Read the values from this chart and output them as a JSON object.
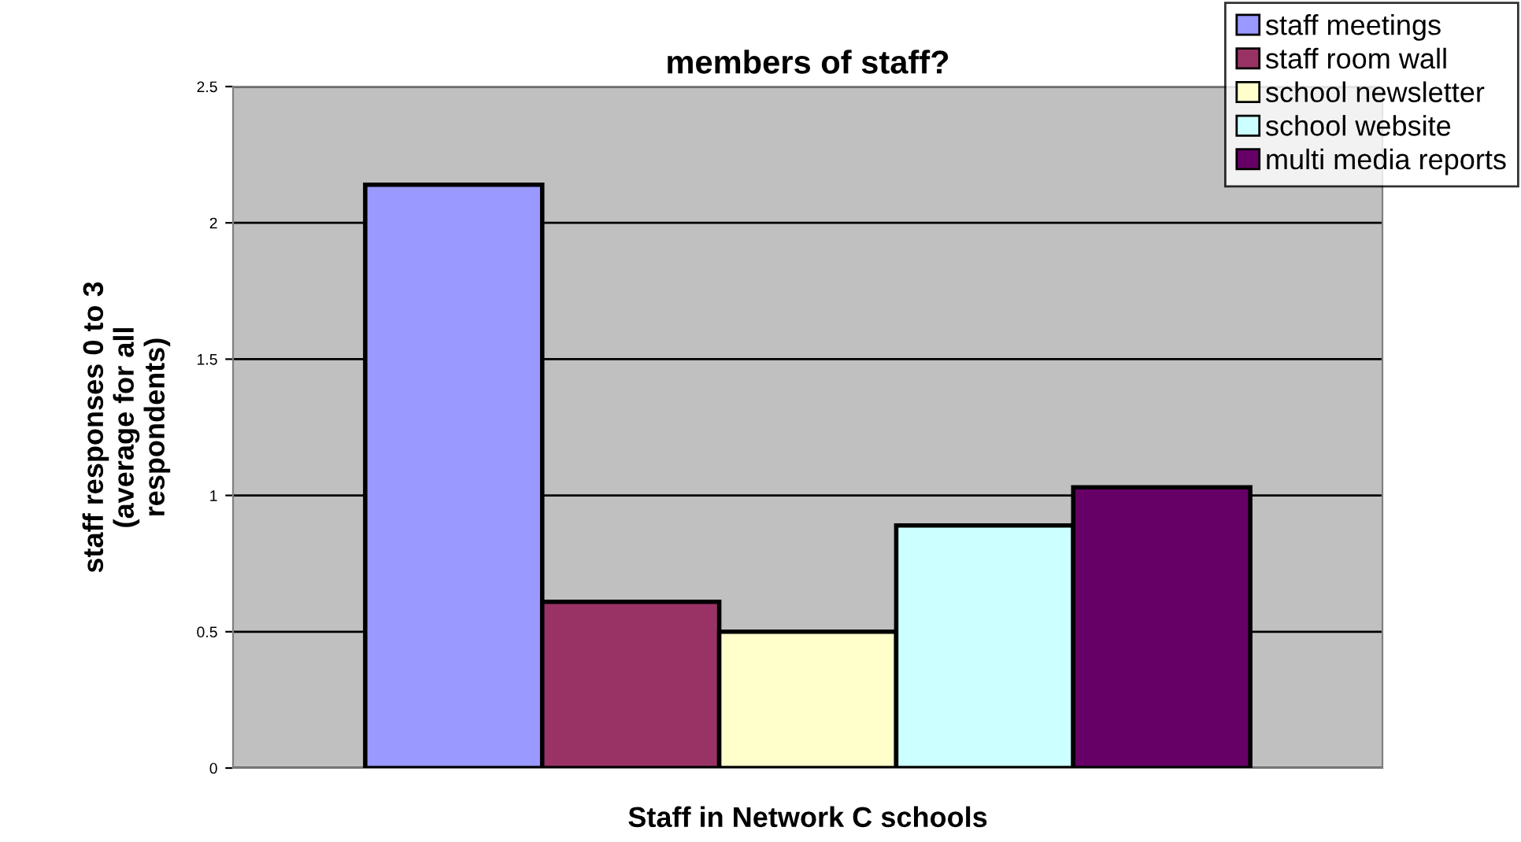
{
  "chart_data": {
    "type": "bar",
    "title": "members of staff?",
    "xlabel": "Staff in Network C schools",
    "ylabel": "staff responses 0 to 3\n(average for all\nrespondents)",
    "categories": [
      null
    ],
    "series": [
      {
        "name": "staff meetings",
        "color": "#9999ff",
        "values": [
          2.14
        ]
      },
      {
        "name": "staff room wall",
        "color": "#993366",
        "values": [
          0.61
        ]
      },
      {
        "name": "school newsletter",
        "color": "#ffffcc",
        "values": [
          0.5
        ]
      },
      {
        "name": "school website",
        "color": "#ccffff",
        "values": [
          0.89
        ]
      },
      {
        "name": "multi media reports",
        "color": "#660066",
        "values": [
          1.03
        ]
      }
    ],
    "ylim": [
      0,
      2.5
    ],
    "yticks": [
      0,
      0.5,
      1,
      1.5,
      2,
      2.5
    ],
    "grid": "y",
    "legend": "top right"
  }
}
